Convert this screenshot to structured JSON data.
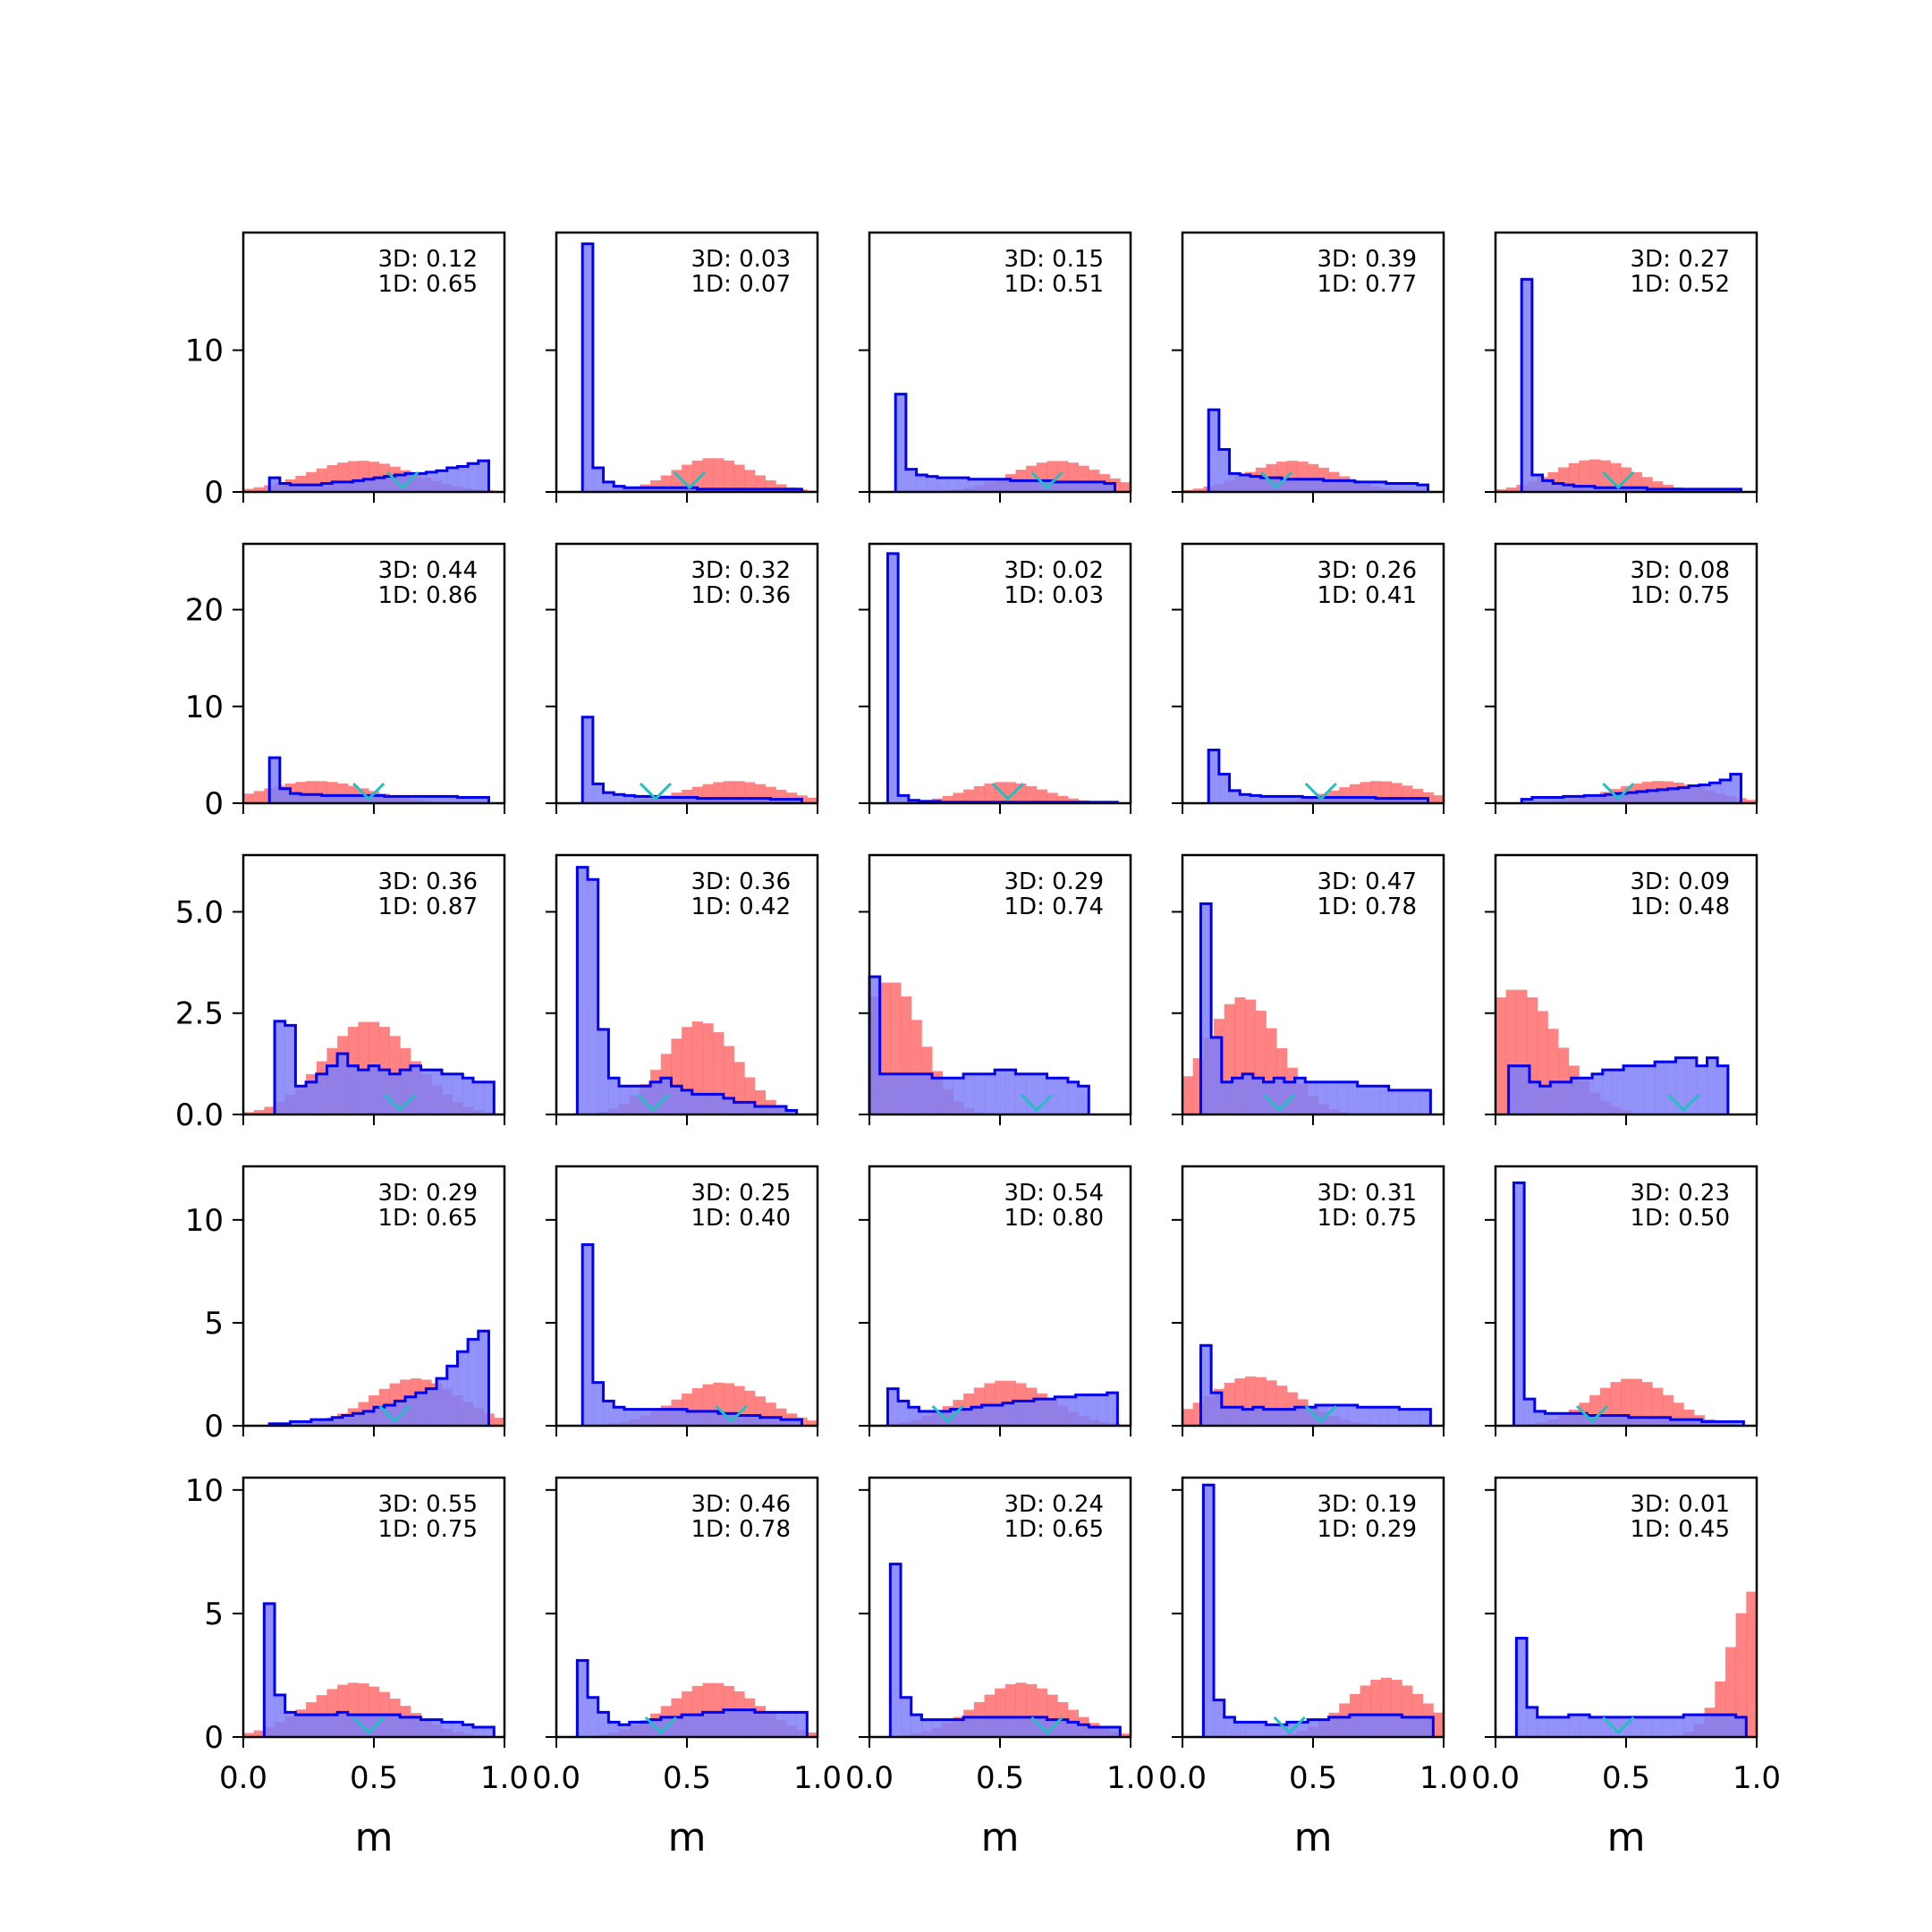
{
  "figure": {
    "xlabel": "m"
  },
  "rows": [
    {
      "ylim": [
        0,
        18.3
      ],
      "yticks": [
        {
          "v": 0,
          "label": "0"
        },
        {
          "v": 10,
          "label": "10"
        }
      ]
    },
    {
      "ylim": [
        0,
        26.8
      ],
      "yticks": [
        {
          "v": 0,
          "label": "0"
        },
        {
          "v": 10,
          "label": "10"
        },
        {
          "v": 20,
          "label": "20"
        }
      ]
    },
    {
      "ylim": [
        0,
        6.4
      ],
      "yticks": [
        {
          "v": 0,
          "label": "0.0"
        },
        {
          "v": 2.5,
          "label": "2.5"
        },
        {
          "v": 5,
          "label": "5.0"
        }
      ]
    },
    {
      "ylim": [
        0,
        12.6
      ],
      "yticks": [
        {
          "v": 0,
          "label": "0"
        },
        {
          "v": 5,
          "label": "5"
        },
        {
          "v": 10,
          "label": "10"
        }
      ]
    },
    {
      "ylim": [
        0,
        10.5
      ],
      "yticks": [
        {
          "v": 0,
          "label": "0"
        },
        {
          "v": 5,
          "label": "5"
        },
        {
          "v": 10,
          "label": "10"
        }
      ]
    }
  ],
  "xticks": [
    {
      "v": 0,
      "label": "0.0"
    },
    {
      "v": 0.5,
      "label": "0.5"
    },
    {
      "v": 1,
      "label": "1.0"
    }
  ],
  "colors": {
    "blue": "#0000ee",
    "blue_fill": "#7f7ff8",
    "red_fill": "#ff6060",
    "marker": "#20c0c0"
  },
  "chart_data": {
    "type": "histogram-grid",
    "xlabel": "m",
    "xlim": [
      0,
      1
    ],
    "panels": [
      {
        "ann3d": "3D: 0.12",
        "ann1d": "1D: 0.65",
        "marker": 0.61,
        "blue": {
          "start": 0.1,
          "values": [
            1.0,
            0.6,
            0.5,
            0.5,
            0.5,
            0.6,
            0.7,
            0.7,
            0.8,
            0.9,
            1.0,
            1.1,
            1.2,
            1.3,
            1.3,
            1.4,
            1.5,
            1.7,
            1.8,
            2.0,
            2.2
          ]
        },
        "red": {
          "peak": 0.45,
          "sd": 0.2,
          "amp": 2.2
        }
      },
      {
        "ann3d": "3D: 0.03",
        "ann1d": "1D: 0.07",
        "marker": 0.51,
        "blue": {
          "start": 0.1,
          "values": [
            17.5,
            1.7,
            0.7,
            0.4,
            0.3,
            0.3,
            0.3,
            0.3,
            0.3,
            0.3,
            0.3,
            0.2,
            0.2,
            0.2,
            0.2,
            0.2,
            0.2,
            0.2,
            0.2,
            0.2,
            0.2
          ]
        },
        "red": {
          "peak": 0.6,
          "sd": 0.15,
          "amp": 2.4
        }
      },
      {
        "ann3d": "3D: 0.15",
        "ann1d": "1D: 0.51",
        "marker": 0.68,
        "blue": {
          "start": 0.1,
          "values": [
            6.9,
            1.6,
            1.2,
            1.1,
            1.0,
            1.0,
            1.0,
            0.9,
            0.9,
            0.9,
            0.9,
            0.8,
            0.8,
            0.8,
            0.8,
            0.7,
            0.7,
            0.7,
            0.7,
            0.7,
            0.6
          ]
        },
        "red": {
          "peak": 0.72,
          "sd": 0.17,
          "amp": 2.2
        }
      },
      {
        "ann3d": "3D: 0.39",
        "ann1d": "1D: 0.77",
        "marker": 0.36,
        "blue": {
          "start": 0.1,
          "values": [
            5.8,
            3.0,
            1.3,
            1.2,
            1.1,
            1.0,
            1.0,
            0.9,
            0.9,
            0.9,
            0.9,
            0.8,
            0.8,
            0.8,
            0.7,
            0.7,
            0.7,
            0.6,
            0.6,
            0.6,
            0.5
          ]
        },
        "red": {
          "peak": 0.42,
          "sd": 0.17,
          "amp": 2.2
        }
      },
      {
        "ann3d": "3D: 0.27",
        "ann1d": "1D: 0.52",
        "marker": 0.47,
        "blue": {
          "start": 0.1,
          "values": [
            15.0,
            1.2,
            0.8,
            0.6,
            0.5,
            0.4,
            0.4,
            0.3,
            0.3,
            0.3,
            0.3,
            0.3,
            0.2,
            0.2,
            0.2,
            0.2,
            0.2,
            0.2,
            0.2,
            0.2,
            0.2
          ]
        },
        "red": {
          "peak": 0.38,
          "sd": 0.16,
          "amp": 2.3
        }
      },
      {
        "ann3d": "3D: 0.44",
        "ann1d": "1D: 0.86",
        "marker": 0.48,
        "blue": {
          "start": 0.1,
          "values": [
            4.7,
            1.5,
            1.0,
            0.9,
            0.9,
            0.8,
            0.8,
            0.8,
            0.8,
            0.8,
            0.8,
            0.7,
            0.7,
            0.7,
            0.7,
            0.7,
            0.7,
            0.7,
            0.6,
            0.6,
            0.6
          ]
        },
        "red": {
          "peak": 0.28,
          "sd": 0.2,
          "amp": 2.3
        }
      },
      {
        "ann3d": "3D: 0.32",
        "ann1d": "1D: 0.36",
        "marker": 0.38,
        "blue": {
          "start": 0.1,
          "values": [
            8.9,
            2.0,
            1.1,
            0.9,
            0.8,
            0.7,
            0.7,
            0.6,
            0.6,
            0.6,
            0.6,
            0.5,
            0.5,
            0.5,
            0.5,
            0.5,
            0.5,
            0.5,
            0.4,
            0.4,
            0.4
          ]
        },
        "red": {
          "peak": 0.68,
          "sd": 0.18,
          "amp": 2.3
        }
      },
      {
        "ann3d": "3D: 0.02",
        "ann1d": "1D: 0.03",
        "marker": 0.53,
        "blue": {
          "start": 0.07,
          "values": [
            25.8,
            0.8,
            0.3,
            0.2,
            0.2,
            0.1,
            0.1,
            0.1,
            0.1,
            0.1,
            0.1,
            0.1,
            0.1,
            0.1,
            0.1,
            0.1,
            0.1,
            0.1,
            0.1,
            0.1,
            0.1,
            0.1
          ]
        },
        "red": {
          "peak": 0.52,
          "sd": 0.15,
          "amp": 2.2
        }
      },
      {
        "ann3d": "3D: 0.26",
        "ann1d": "1D: 0.41",
        "marker": 0.53,
        "blue": {
          "start": 0.1,
          "values": [
            5.5,
            3.0,
            1.3,
            0.9,
            0.8,
            0.7,
            0.7,
            0.7,
            0.7,
            0.6,
            0.6,
            0.6,
            0.6,
            0.6,
            0.6,
            0.6,
            0.5,
            0.5,
            0.5,
            0.5,
            0.5
          ]
        },
        "red": {
          "peak": 0.75,
          "sd": 0.16,
          "amp": 2.3
        }
      },
      {
        "ann3d": "3D: 0.08",
        "ann1d": "1D: 0.75",
        "marker": 0.47,
        "blue": {
          "start": 0.1,
          "values": [
            0.4,
            0.6,
            0.6,
            0.6,
            0.7,
            0.7,
            0.8,
            0.8,
            0.9,
            1.0,
            1.1,
            1.2,
            1.3,
            1.4,
            1.5,
            1.6,
            1.8,
            1.9,
            2.1,
            2.4,
            3.0
          ]
        },
        "red": {
          "peak": 0.63,
          "sd": 0.18,
          "amp": 2.3
        }
      },
      {
        "ann3d": "3D: 0.36",
        "ann1d": "1D: 0.87",
        "marker": 0.6,
        "blue": {
          "start": 0.12,
          "values": [
            2.3,
            2.2,
            0.7,
            0.8,
            1.0,
            1.2,
            1.5,
            1.2,
            1.1,
            1.2,
            1.1,
            1.0,
            1.1,
            1.2,
            1.1,
            1.1,
            1.0,
            1.0,
            0.9,
            0.8,
            0.8
          ]
        },
        "red": {
          "peak": 0.48,
          "sd": 0.17,
          "amp": 2.3
        }
      },
      {
        "ann3d": "3D: 0.36",
        "ann1d": "1D: 0.42",
        "marker": 0.37,
        "blue": {
          "start": 0.08,
          "values": [
            6.1,
            5.8,
            2.1,
            0.9,
            0.7,
            0.7,
            0.7,
            0.8,
            0.9,
            0.7,
            0.6,
            0.5,
            0.5,
            0.5,
            0.4,
            0.3,
            0.3,
            0.2,
            0.2,
            0.2,
            0.1
          ]
        },
        "red": {
          "peak": 0.55,
          "sd": 0.14,
          "amp": 2.3
        }
      },
      {
        "ann3d": "3D: 0.29",
        "ann1d": "1D: 0.74",
        "marker": 0.64,
        "blue": {
          "start": 0.0,
          "values": [
            3.4,
            1.0,
            1.0,
            1.0,
            1.0,
            1.0,
            0.9,
            0.9,
            0.9,
            1.0,
            1.0,
            1.0,
            1.1,
            1.1,
            1.0,
            1.0,
            1.0,
            0.9,
            0.9,
            0.8,
            0.7
          ]
        },
        "red": {
          "peak": 0.08,
          "sd": 0.12,
          "amp": 3.3
        }
      },
      {
        "ann3d": "3D: 0.47",
        "ann1d": "1D: 0.78",
        "marker": 0.37,
        "blue": {
          "start": 0.07,
          "values": [
            5.2,
            1.9,
            0.8,
            0.9,
            1.0,
            0.9,
            0.8,
            0.9,
            0.8,
            0.9,
            0.8,
            0.8,
            0.8,
            0.8,
            0.8,
            0.7,
            0.7,
            0.7,
            0.6,
            0.6,
            0.6,
            0.6
          ]
        },
        "red": {
          "peak": 0.23,
          "sd": 0.14,
          "amp": 2.9
        }
      },
      {
        "ann3d": "3D: 0.09",
        "ann1d": "1D: 0.48",
        "marker": 0.72,
        "blue": {
          "start": 0.05,
          "values": [
            1.2,
            1.2,
            0.8,
            0.7,
            0.8,
            0.8,
            0.9,
            0.9,
            1.0,
            1.1,
            1.1,
            1.2,
            1.2,
            1.2,
            1.3,
            1.3,
            1.4,
            1.4,
            1.2,
            1.4,
            1.2
          ]
        },
        "red": {
          "peak": 0.08,
          "sd": 0.16,
          "amp": 3.1
        }
      },
      {
        "ann3d": "3D: 0.29",
        "ann1d": "1D: 0.65",
        "marker": 0.58,
        "blue": {
          "start": 0.1,
          "values": [
            0.1,
            0.1,
            0.2,
            0.2,
            0.3,
            0.3,
            0.4,
            0.5,
            0.6,
            0.7,
            0.9,
            1.0,
            1.2,
            1.4,
            1.6,
            1.8,
            2.3,
            2.9,
            3.6,
            4.2,
            4.6
          ]
        },
        "red": {
          "peak": 0.66,
          "sd": 0.17,
          "amp": 2.3
        }
      },
      {
        "ann3d": "3D: 0.25",
        "ann1d": "1D: 0.40",
        "marker": 0.67,
        "blue": {
          "start": 0.1,
          "values": [
            8.8,
            2.1,
            1.2,
            0.9,
            0.8,
            0.8,
            0.8,
            0.8,
            0.8,
            0.8,
            0.7,
            0.7,
            0.7,
            0.6,
            0.6,
            0.5,
            0.5,
            0.4,
            0.4,
            0.3,
            0.3
          ]
        },
        "red": {
          "peak": 0.63,
          "sd": 0.17,
          "amp": 2.1
        }
      },
      {
        "ann3d": "3D: 0.54",
        "ann1d": "1D: 0.80",
        "marker": 0.3,
        "blue": {
          "start": 0.07,
          "values": [
            1.8,
            1.2,
            0.9,
            0.7,
            0.7,
            0.7,
            0.8,
            0.8,
            0.9,
            1.0,
            1.0,
            1.1,
            1.2,
            1.2,
            1.3,
            1.3,
            1.4,
            1.4,
            1.5,
            1.5,
            1.5,
            1.6
          ]
        },
        "red": {
          "peak": 0.52,
          "sd": 0.17,
          "amp": 2.2
        }
      },
      {
        "ann3d": "3D: 0.31",
        "ann1d": "1D: 0.75",
        "marker": 0.53,
        "blue": {
          "start": 0.07,
          "values": [
            3.9,
            1.6,
            0.9,
            0.9,
            0.8,
            0.9,
            0.8,
            0.8,
            0.8,
            0.9,
            0.9,
            1.0,
            1.0,
            1.0,
            1.0,
            0.9,
            0.9,
            0.9,
            0.9,
            0.8,
            0.8,
            0.8
          ]
        },
        "red": {
          "peak": 0.27,
          "sd": 0.17,
          "amp": 2.4
        }
      },
      {
        "ann3d": "3D: 0.23",
        "ann1d": "1D: 0.50",
        "marker": 0.37,
        "blue": {
          "start": 0.07,
          "values": [
            11.8,
            1.3,
            0.7,
            0.6,
            0.6,
            0.6,
            0.6,
            0.5,
            0.5,
            0.5,
            0.5,
            0.4,
            0.4,
            0.4,
            0.4,
            0.3,
            0.3,
            0.3,
            0.2,
            0.2,
            0.2,
            0.2
          ]
        },
        "red": {
          "peak": 0.52,
          "sd": 0.15,
          "amp": 2.3
        }
      },
      {
        "ann3d": "3D: 0.55",
        "ann1d": "1D: 0.75",
        "marker": 0.48,
        "blue": {
          "start": 0.08,
          "values": [
            5.4,
            1.7,
            1.0,
            0.9,
            0.9,
            0.9,
            0.9,
            1.0,
            0.9,
            0.9,
            0.9,
            0.9,
            0.9,
            0.8,
            0.8,
            0.7,
            0.7,
            0.6,
            0.6,
            0.5,
            0.4,
            0.4
          ]
        },
        "red": {
          "peak": 0.43,
          "sd": 0.18,
          "amp": 2.2
        }
      },
      {
        "ann3d": "3D: 0.46",
        "ann1d": "1D: 0.78",
        "marker": 0.4,
        "blue": {
          "start": 0.08,
          "values": [
            3.1,
            1.6,
            1.0,
            0.6,
            0.5,
            0.6,
            0.6,
            0.7,
            0.8,
            0.8,
            0.9,
            0.9,
            1.0,
            1.0,
            1.1,
            1.1,
            1.1,
            1.0,
            1.0,
            1.0,
            1.0,
            1.0
          ]
        },
        "red": {
          "peak": 0.6,
          "sd": 0.17,
          "amp": 2.2
        }
      },
      {
        "ann3d": "3D: 0.24",
        "ann1d": "1D: 0.65",
        "marker": 0.68,
        "blue": {
          "start": 0.08,
          "values": [
            7.0,
            1.6,
            0.9,
            0.7,
            0.7,
            0.7,
            0.7,
            0.8,
            0.8,
            0.8,
            0.8,
            0.8,
            0.8,
            0.8,
            0.8,
            0.7,
            0.7,
            0.6,
            0.5,
            0.4,
            0.4,
            0.4
          ]
        },
        "red": {
          "peak": 0.58,
          "sd": 0.17,
          "amp": 2.2
        }
      },
      {
        "ann3d": "3D: 0.19",
        "ann1d": "1D: 0.29",
        "marker": 0.41,
        "blue": {
          "start": 0.08,
          "values": [
            10.2,
            1.5,
            0.8,
            0.6,
            0.6,
            0.6,
            0.5,
            0.5,
            0.6,
            0.6,
            0.7,
            0.7,
            0.8,
            0.8,
            0.9,
            0.9,
            0.9,
            0.9,
            0.9,
            0.8,
            0.8,
            0.8
          ]
        },
        "red": {
          "peak": 0.78,
          "sd": 0.15,
          "amp": 2.4
        }
      },
      {
        "ann3d": "3D: 0.01",
        "ann1d": "1D: 0.45",
        "marker": 0.47,
        "blue": {
          "start": 0.08,
          "values": [
            4.0,
            1.2,
            0.8,
            0.8,
            0.8,
            0.9,
            0.9,
            0.8,
            0.8,
            0.8,
            0.8,
            0.8,
            0.8,
            0.8,
            0.8,
            0.8,
            0.9,
            0.9,
            0.9,
            0.9,
            0.9,
            0.8
          ]
        },
        "red": {
          "peak": 1.0,
          "sd": 0.1,
          "amp": 6.0
        }
      }
    ]
  }
}
